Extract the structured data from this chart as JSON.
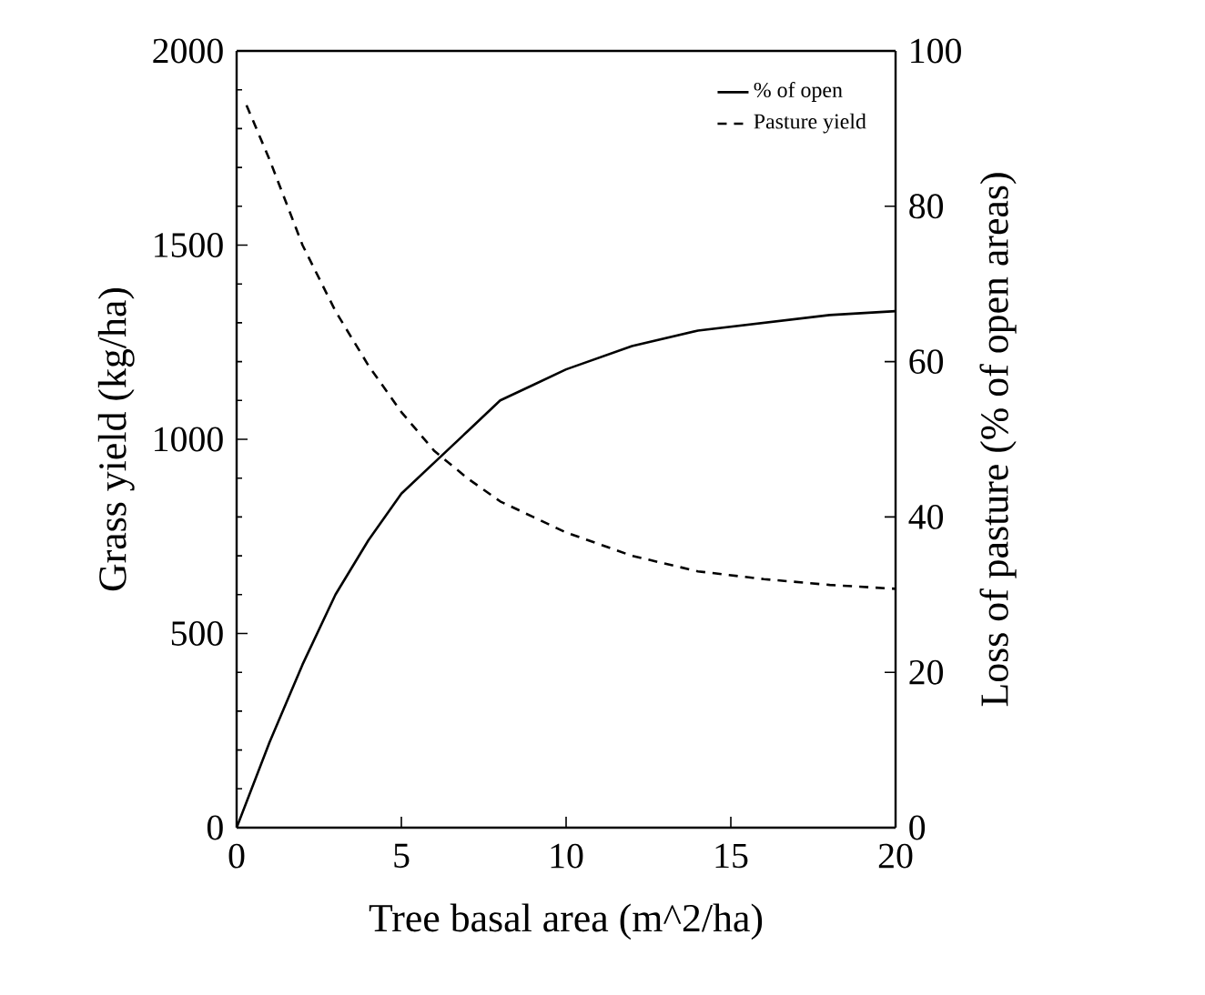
{
  "chart_data": {
    "type": "line",
    "xlabel": "Tree basal area (m^2/ha)",
    "ylabel": "Grass yield (kg/ha)",
    "y2label": "Loss of pasture (% of open areas)",
    "xlim": [
      0,
      20
    ],
    "xticks": [
      0,
      5,
      10,
      15,
      20
    ],
    "ylim": [
      0,
      2000
    ],
    "yticks": [
      0,
      500,
      1000,
      1500,
      2000
    ],
    "y2lim": [
      0,
      100
    ],
    "y2ticks": [
      0,
      20,
      40,
      60,
      80,
      100
    ],
    "legend": "top right",
    "grid": false,
    "marker": "none",
    "series": [
      {
        "name": "% of open",
        "color": "#000000",
        "axis": "y2",
        "line_style": "solid",
        "x": [
          0,
          1,
          2,
          3,
          4,
          5,
          6,
          7,
          8,
          9,
          10,
          12,
          14,
          16,
          18,
          20
        ],
        "values": [
          0,
          11,
          21,
          30,
          37,
          43,
          47,
          51,
          55,
          57,
          59,
          62,
          64,
          65,
          66,
          66.5
        ]
      },
      {
        "name": "Pasture yield",
        "color": "#000000",
        "line_style": "dashed",
        "x": [
          0.3,
          1,
          2,
          3,
          4,
          5,
          6,
          7,
          8,
          9,
          10,
          12,
          14,
          16,
          18,
          20
        ],
        "values": [
          1860,
          1720,
          1500,
          1330,
          1190,
          1070,
          970,
          900,
          840,
          800,
          760,
          700,
          660,
          640,
          625,
          615
        ]
      }
    ]
  }
}
